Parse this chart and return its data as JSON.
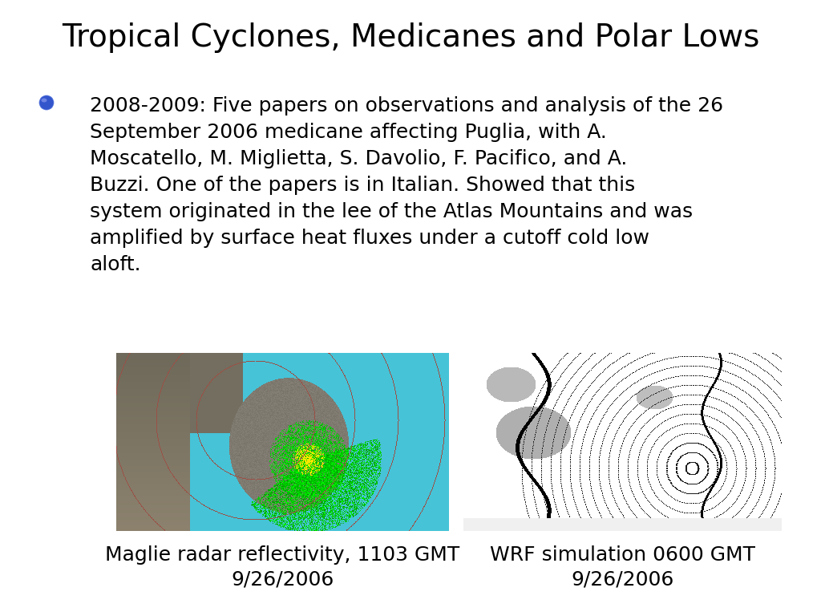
{
  "title": "Tropical Cyclones, Medicanes and Polar Lows",
  "title_fontsize": 28,
  "background_color": "#ffffff",
  "bullet_color": "#4466bb",
  "bullet_text_lines": [
    "2008-2009: Five papers on observations and analysis of the 26",
    "September 2006 medicane affecting Puglia, with A.",
    "Moscatello, M. Miglietta, S. Davolio, F. Pacifico, and A.",
    "Buzzi. One of the papers is in Italian. Showed that this",
    "system originated in the lee of the Atlas Mountains and was",
    "amplified by surface heat fluxes under a cutoff cold low",
    "aloft."
  ],
  "bullet_fontsize": 18,
  "caption1_line1": "Maglie radar reflectivity, 1103 GMT",
  "caption1_line2": "9/26/2006",
  "caption2_line1": "WRF simulation 0600 GMT",
  "caption2_line2": "9/26/2006",
  "caption_fontsize": 18
}
